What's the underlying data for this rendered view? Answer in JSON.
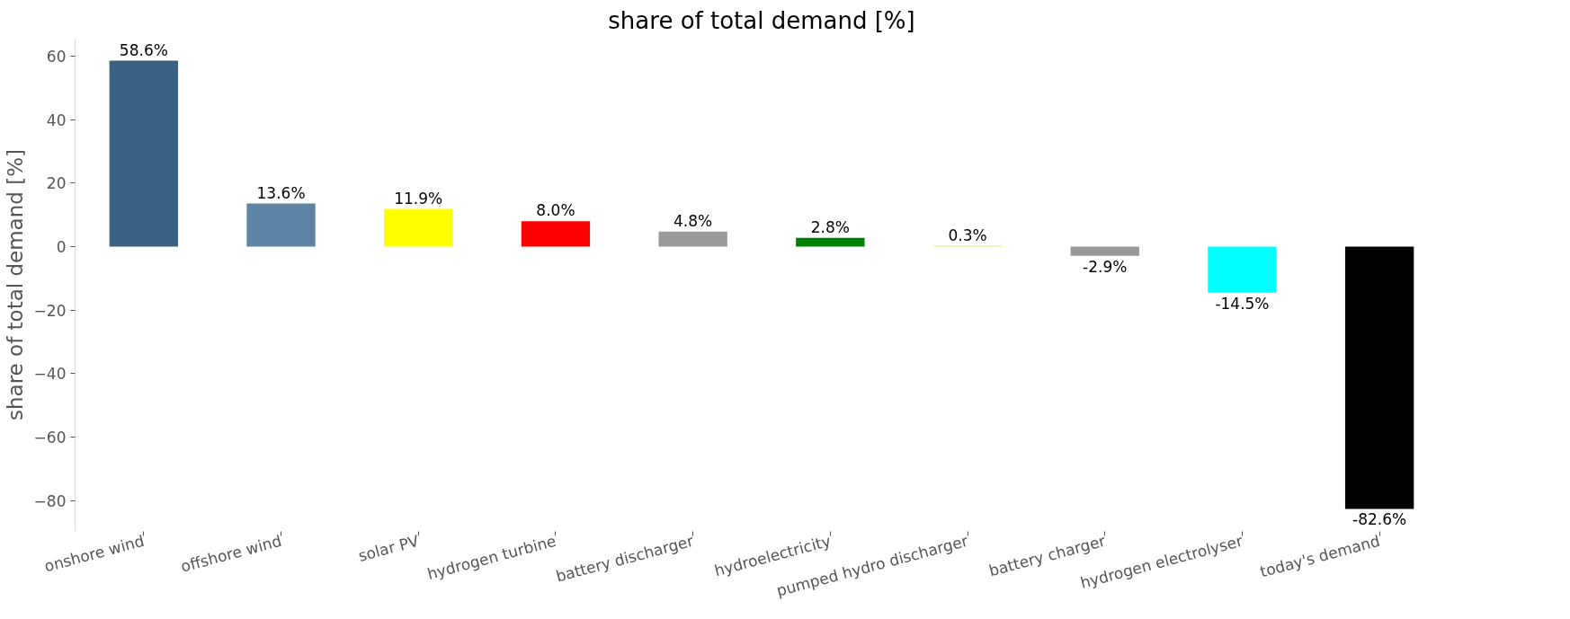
{
  "chart_data": {
    "type": "bar",
    "title": "share of total demand [%]",
    "ylabel": "share of total demand [%]",
    "categories": [
      "onshore wind",
      "offshore wind",
      "solar PV",
      "hydrogen turbine",
      "battery discharger",
      "hydroelectricity",
      "pumped hydro discharger",
      "battery charger",
      "hydrogen electrolyser",
      "today's demand"
    ],
    "values": [
      58.6,
      13.6,
      11.9,
      8.0,
      4.8,
      2.8,
      0.3,
      -2.9,
      -14.5,
      -82.6
    ],
    "colors": [
      "#3b6182",
      "#5f85a6",
      "#ffff00",
      "#ff0000",
      "#999999",
      "#008000",
      "#d9f27a",
      "#999999",
      "#00ffff",
      "#000000"
    ],
    "value_labels": [
      "58.6%",
      "13.6%",
      "11.9%",
      "8.0%",
      "4.8%",
      "2.8%",
      "0.3%",
      "-2.9%",
      "-14.5%",
      "-82.6%"
    ],
    "ylim": [
      -89.7,
      65.7
    ],
    "yticks": [
      -80,
      -60,
      -40,
      -20,
      0,
      20,
      40,
      60
    ],
    "grid": false
  }
}
